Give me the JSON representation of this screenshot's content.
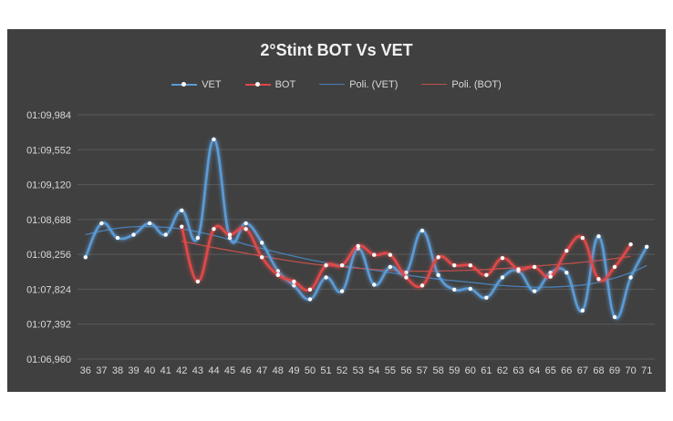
{
  "chart_data": {
    "type": "line",
    "title": "2°Stint BOT Vs VET",
    "legend_position": "top",
    "grid": true,
    "yticks": [
      "01:06,960",
      "01:07,392",
      "01:07,824",
      "01:08,256",
      "01:08,688",
      "01:09,120",
      "01:09,552",
      "01:09,984"
    ],
    "ylim": [
      66.96,
      69.984
    ],
    "x": [
      36,
      37,
      38,
      39,
      40,
      41,
      42,
      43,
      44,
      45,
      46,
      47,
      48,
      49,
      50,
      51,
      52,
      53,
      54,
      55,
      56,
      57,
      58,
      59,
      60,
      61,
      62,
      63,
      64,
      65,
      66,
      67,
      68,
      69,
      70,
      71
    ],
    "series": [
      {
        "name": "VET",
        "color": "#5b9bd5",
        "x": [
          36,
          37,
          38,
          39,
          40,
          41,
          42,
          43,
          44,
          45,
          46,
          47,
          48,
          49,
          50,
          51,
          52,
          53,
          54,
          55,
          56,
          57,
          58,
          59,
          60,
          61,
          62,
          63,
          64,
          65,
          66,
          67,
          68,
          69,
          70,
          71
        ],
        "values": [
          68.22,
          68.64,
          68.46,
          68.5,
          68.64,
          68.5,
          68.8,
          68.46,
          69.68,
          68.46,
          68.64,
          68.4,
          68.05,
          67.87,
          67.7,
          67.97,
          67.8,
          68.33,
          67.88,
          68.1,
          68.03,
          68.55,
          68.0,
          67.82,
          67.83,
          67.72,
          67.97,
          68.05,
          67.8,
          68.03,
          68.03,
          67.56,
          68.48,
          67.48,
          67.97,
          68.35
        ]
      },
      {
        "name": "BOT",
        "color": "#e04848",
        "x": [
          42,
          43,
          44,
          45,
          46,
          47,
          48,
          49,
          50,
          51,
          52,
          53,
          54,
          55,
          56,
          57,
          58,
          59,
          60,
          61,
          62,
          63,
          64,
          65,
          66,
          67,
          68,
          69,
          70
        ],
        "values": [
          68.6,
          67.92,
          68.57,
          68.5,
          68.57,
          68.22,
          68.0,
          67.92,
          67.82,
          68.12,
          68.12,
          68.36,
          68.25,
          68.25,
          67.97,
          67.87,
          68.22,
          68.12,
          68.12,
          68.0,
          68.21,
          68.07,
          68.1,
          67.98,
          68.3,
          68.46,
          67.95,
          68.1,
          68.38
        ]
      },
      {
        "name": "Poli. (VET)",
        "color": "#4a7fb5",
        "trend": [
          [
            36,
            68.5
          ],
          [
            38,
            68.58
          ],
          [
            40,
            68.6
          ],
          [
            42,
            68.57
          ],
          [
            44,
            68.49
          ],
          [
            46,
            68.38
          ],
          [
            48,
            68.28
          ],
          [
            50,
            68.19
          ],
          [
            52,
            68.12
          ],
          [
            54,
            68.06
          ],
          [
            56,
            68.0
          ],
          [
            58,
            67.95
          ],
          [
            60,
            67.91
          ],
          [
            62,
            67.87
          ],
          [
            64,
            67.85
          ],
          [
            66,
            67.86
          ],
          [
            68,
            67.91
          ],
          [
            70,
            68.03
          ],
          [
            71,
            68.12
          ]
        ]
      },
      {
        "name": "Poli. (BOT)",
        "color": "#c0504d",
        "trend": [
          [
            42,
            68.42
          ],
          [
            44,
            68.34
          ],
          [
            46,
            68.27
          ],
          [
            48,
            68.2
          ],
          [
            50,
            68.14
          ],
          [
            52,
            68.1
          ],
          [
            54,
            68.07
          ],
          [
            56,
            68.05
          ],
          [
            58,
            68.05
          ],
          [
            60,
            68.06
          ],
          [
            62,
            68.08
          ],
          [
            64,
            68.11
          ],
          [
            66,
            68.14
          ],
          [
            68,
            68.18
          ],
          [
            70,
            68.23
          ]
        ]
      }
    ]
  }
}
